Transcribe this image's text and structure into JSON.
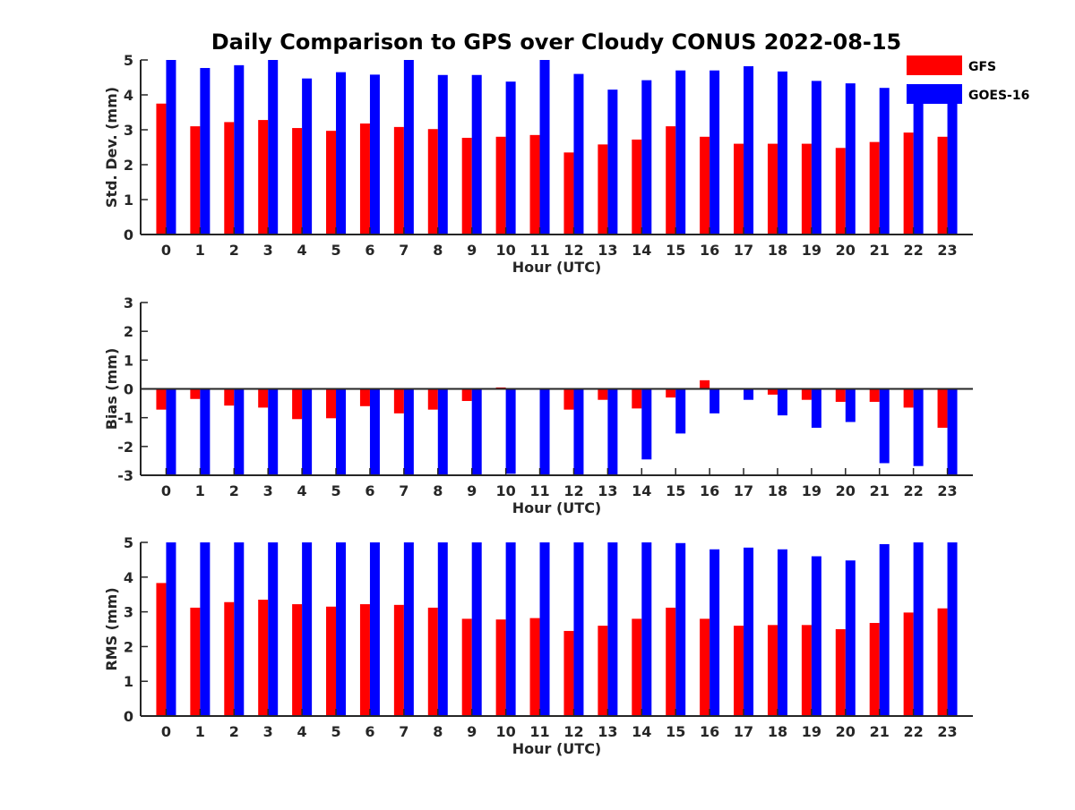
{
  "chart_data": {
    "title": "Daily Comparison to GPS over Cloudy CONUS 2022-08-15",
    "legend": {
      "placement": "top-right",
      "entries": [
        {
          "name": "GFS",
          "color": "#ff0000"
        },
        {
          "name": "GOES-16",
          "color": "#0000ff"
        }
      ]
    },
    "panels": [
      {
        "type": "bar",
        "ylabel": "Std. Dev. (mm)",
        "xlabel": "Hour (UTC)",
        "ylim": [
          0,
          5
        ],
        "yticks": [
          "0",
          "1",
          "2",
          "3",
          "4",
          "5"
        ],
        "categories": [
          "0",
          "1",
          "2",
          "3",
          "4",
          "5",
          "6",
          "7",
          "8",
          "9",
          "10",
          "11",
          "12",
          "13",
          "14",
          "15",
          "16",
          "17",
          "18",
          "19",
          "20",
          "21",
          "22",
          "23"
        ],
        "series": [
          {
            "name": "GFS",
            "color": "#ff0000",
            "values": [
              3.75,
              3.1,
              3.22,
              3.28,
              3.05,
              2.97,
              3.18,
              3.08,
              3.02,
              2.77,
              2.8,
              2.85,
              2.35,
              2.58,
              2.72,
              3.1,
              2.8,
              2.6,
              2.6,
              2.6,
              2.48,
              2.65,
              2.92,
              2.8
            ]
          },
          {
            "name": "GOES-16",
            "color": "#0000ff",
            "values": [
              5.0,
              4.77,
              4.85,
              5.0,
              4.47,
              4.65,
              4.58,
              5.0,
              4.57,
              4.57,
              4.38,
              5.0,
              4.6,
              4.15,
              4.42,
              4.7,
              4.7,
              4.82,
              4.67,
              4.4,
              4.33,
              4.2,
              4.22,
              4.0
            ]
          }
        ]
      },
      {
        "type": "bar",
        "ylabel": "Bias (mm)",
        "xlabel": "Hour (UTC)",
        "ylim": [
          -3,
          3
        ],
        "yticks": [
          "-3",
          "-2",
          "-1",
          "0",
          "1",
          "2",
          "3"
        ],
        "categories": [
          "0",
          "1",
          "2",
          "3",
          "4",
          "5",
          "6",
          "7",
          "8",
          "9",
          "10",
          "11",
          "12",
          "13",
          "14",
          "15",
          "16",
          "17",
          "18",
          "19",
          "20",
          "21",
          "22",
          "23"
        ],
        "series": [
          {
            "name": "GFS",
            "color": "#ff0000",
            "values": [
              -0.72,
              -0.35,
              -0.58,
              -0.65,
              -1.05,
              -1.02,
              -0.6,
              -0.85,
              -0.72,
              -0.42,
              0.05,
              0.02,
              -0.72,
              -0.38,
              -0.68,
              -0.3,
              0.3,
              0.0,
              -0.2,
              -0.38,
              -0.45,
              -0.45,
              -0.65,
              -1.35
            ]
          },
          {
            "name": "GOES-16",
            "color": "#0000ff",
            "values": [
              -3.0,
              -3.0,
              -3.0,
              -3.0,
              -3.0,
              -3.0,
              -3.0,
              -3.0,
              -3.0,
              -3.0,
              -2.95,
              -3.0,
              -3.0,
              -3.0,
              -2.45,
              -1.55,
              -0.85,
              -0.38,
              -0.92,
              -1.35,
              -1.15,
              -2.58,
              -2.68,
              -3.0
            ]
          }
        ]
      },
      {
        "type": "bar",
        "ylabel": "RMS (mm)",
        "xlabel": "Hour (UTC)",
        "ylim": [
          0,
          5
        ],
        "yticks": [
          "0",
          "1",
          "2",
          "3",
          "4",
          "5"
        ],
        "categories": [
          "0",
          "1",
          "2",
          "3",
          "4",
          "5",
          "6",
          "7",
          "8",
          "9",
          "10",
          "11",
          "12",
          "13",
          "14",
          "15",
          "16",
          "17",
          "18",
          "19",
          "20",
          "21",
          "22",
          "23"
        ],
        "series": [
          {
            "name": "GFS",
            "color": "#ff0000",
            "values": [
              3.83,
              3.12,
              3.28,
              3.35,
              3.22,
              3.15,
              3.22,
              3.2,
              3.12,
              2.8,
              2.78,
              2.82,
              2.45,
              2.6,
              2.8,
              3.12,
              2.8,
              2.6,
              2.62,
              2.62,
              2.5,
              2.68,
              2.98,
              3.1
            ]
          },
          {
            "name": "GOES-16",
            "color": "#0000ff",
            "values": [
              5.0,
              5.0,
              5.0,
              5.0,
              5.0,
              5.0,
              5.0,
              5.0,
              5.0,
              5.0,
              5.0,
              5.0,
              5.0,
              5.0,
              5.0,
              4.98,
              4.8,
              4.85,
              4.8,
              4.6,
              4.48,
              4.95,
              5.0,
              5.0
            ]
          }
        ]
      }
    ]
  }
}
